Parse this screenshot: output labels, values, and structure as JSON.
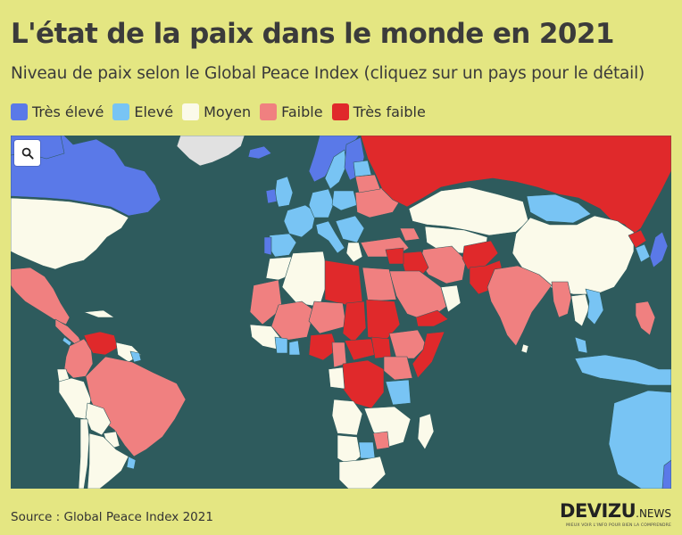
{
  "header": {
    "title": "L'état de la paix dans le monde en 2021",
    "subtitle": "Niveau de paix selon le Global Peace Index (cliquez sur un pays pour le détail)"
  },
  "legend": [
    {
      "label": "Très élevé",
      "color": "#5a79e8"
    },
    {
      "label": "Elevé",
      "color": "#78c4f4"
    },
    {
      "label": "Moyen",
      "color": "#fbfaea"
    },
    {
      "label": "Faible",
      "color": "#f08080"
    },
    {
      "label": "Très faible",
      "color": "#e0292b"
    }
  ],
  "map": {
    "ocean_color": "#2e5b5d",
    "no_data_color": "#e1e1e1",
    "zoom_icon": "search-icon"
  },
  "footer": {
    "source": "Source : Global Peace Index 2021",
    "logo": "DEVIZU",
    "logo_suffix": ".NEWS",
    "logo_tagline": "MIEUX VOIR L'INFO POUR BIEN LA COMPRENDRE"
  }
}
